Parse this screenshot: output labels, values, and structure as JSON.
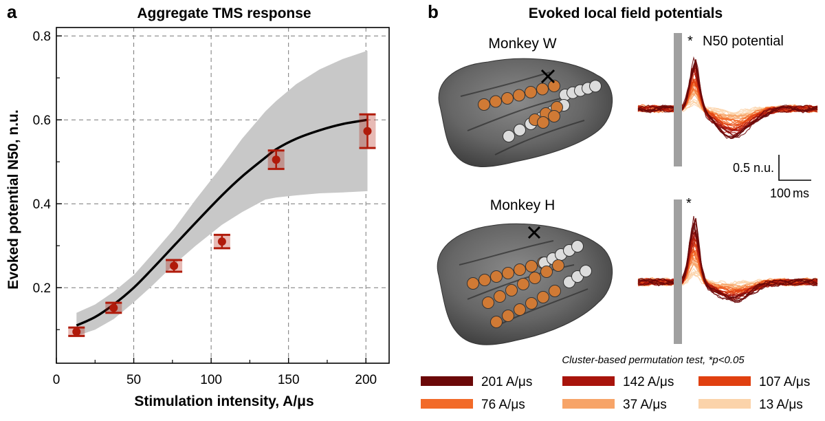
{
  "panel_a": {
    "letter": "a",
    "chart_data": {
      "type": "scatter",
      "title": "Aggregate TMS response",
      "xlabel": "Stimulation intensity, A/μs",
      "ylabel": "Evoked potential N50, n.u.",
      "xlim": [
        0,
        215
      ],
      "ylim": [
        0.02,
        0.82
      ],
      "xticks": [
        0,
        50,
        100,
        150,
        200
      ],
      "yticks": [
        0.2,
        0.4,
        0.6,
        0.8
      ],
      "xtick_labels": [
        "0",
        "50",
        "100",
        "150",
        "200"
      ],
      "ytick_labels": [
        "0.2",
        "0.4",
        "0.6",
        "0.8"
      ],
      "grid": true,
      "points": [
        {
          "x": 13,
          "y": 0.095,
          "err": 0.01
        },
        {
          "x": 37,
          "y": 0.152,
          "err": 0.012
        },
        {
          "x": 76,
          "y": 0.252,
          "err": 0.014
        },
        {
          "x": 107,
          "y": 0.31,
          "err": 0.016
        },
        {
          "x": 142,
          "y": 0.505,
          "err": 0.022
        },
        {
          "x": 201,
          "y": 0.573,
          "err": 0.04
        }
      ],
      "fit_curve": {
        "x": [
          13,
          25,
          37,
          50,
          62,
          76,
          90,
          107,
          120,
          135,
          142,
          155,
          170,
          185,
          201
        ],
        "y": [
          0.11,
          0.13,
          0.16,
          0.2,
          0.245,
          0.3,
          0.355,
          0.42,
          0.465,
          0.51,
          0.53,
          0.555,
          0.575,
          0.59,
          0.6
        ]
      },
      "band_upper": [
        0.14,
        0.16,
        0.19,
        0.23,
        0.28,
        0.34,
        0.41,
        0.49,
        0.555,
        0.62,
        0.645,
        0.685,
        0.72,
        0.745,
        0.765
      ],
      "band_lower": [
        0.085,
        0.1,
        0.125,
        0.165,
        0.205,
        0.255,
        0.3,
        0.35,
        0.38,
        0.41,
        0.415,
        0.42,
        0.425,
        0.427,
        0.43
      ],
      "colors": {
        "points": "#b01a0a",
        "fit": "#000000",
        "band": "#c8c8c8"
      }
    }
  },
  "panel_b": {
    "letter": "b",
    "title": "Evoked local field potentials",
    "monkey_w": "Monkey W",
    "monkey_h": "Monkey H",
    "n50_star": "*",
    "n50_label": "N50 potential",
    "star_h": "*",
    "scale_y": "0.5 n.u.",
    "scale_x_value": "100",
    "scale_x_unit": "ms",
    "test_note": "Cluster-based permutation test, *p<0.05",
    "legend": [
      {
        "label": "201 A/μs",
        "color": "#6b0808"
      },
      {
        "label": "142 A/μs",
        "color": "#a8140c"
      },
      {
        "label": "107 A/μs",
        "color": "#e04010"
      },
      {
        "label": "76 A/μs",
        "color": "#f26a28"
      },
      {
        "label": "37 A/μs",
        "color": "#f7a468"
      },
      {
        "label": "13 A/μs",
        "color": "#fbd3aa"
      }
    ]
  }
}
